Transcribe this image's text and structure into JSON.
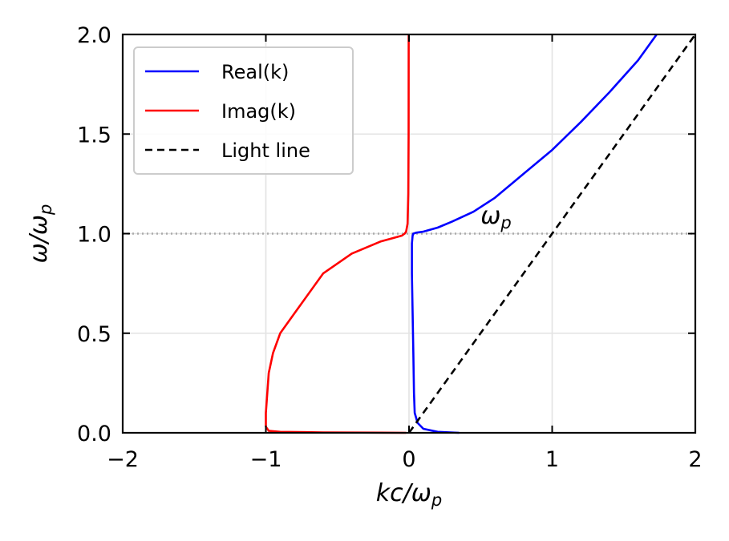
{
  "chart_data": {
    "type": "line",
    "xlabel": "kc/ωp",
    "xlabel_parts": {
      "main": "kc/ω",
      "sub": "p"
    },
    "ylabel": "ω/ωp",
    "ylabel_parts": {
      "main": "ω/ω",
      "sub": "p"
    },
    "xlim": [
      -2,
      2
    ],
    "ylim": [
      0,
      2
    ],
    "x_ticks": [
      -2,
      -1,
      0,
      1,
      2
    ],
    "x_tick_labels": [
      "−2",
      "−1",
      "0",
      "1",
      "2"
    ],
    "y_ticks": [
      0,
      0.5,
      1,
      1.5,
      2
    ],
    "y_tick_labels": [
      "0.0",
      "0.5",
      "1.0",
      "1.5",
      "2.0"
    ],
    "grid": true,
    "legend_position": "top-left",
    "reference_line": {
      "y": 1.0,
      "style": "dotted",
      "color": "#aaaaaa"
    },
    "annotation": {
      "text": "ωp",
      "main": "ω",
      "sub": "p",
      "x": 0.5,
      "y": 1.05
    },
    "series": [
      {
        "name": "Real(k)",
        "color": "#0000ff",
        "style": "solid",
        "x": [
          0.35,
          0.2,
          0.1,
          0.06,
          0.04,
          0.035,
          0.03,
          0.025,
          0.02,
          0.02,
          0.025,
          0.03,
          0.05,
          0.1,
          0.2,
          0.3,
          0.45,
          0.6,
          0.8,
          1.0,
          1.2,
          1.4,
          1.6,
          1.73
        ],
        "y": [
          0.0,
          0.005,
          0.02,
          0.05,
          0.1,
          0.2,
          0.4,
          0.6,
          0.8,
          0.95,
          0.99,
          1.0,
          1.005,
          1.01,
          1.03,
          1.06,
          1.11,
          1.18,
          1.3,
          1.42,
          1.56,
          1.71,
          1.87,
          2.0
        ]
      },
      {
        "name": "Imag(k)",
        "color": "#ff0000",
        "style": "solid",
        "x": [
          -0.02,
          -0.2,
          -0.6,
          -0.9,
          -0.98,
          -1.0,
          -1.0,
          -0.99,
          -0.98,
          -0.95,
          -0.9,
          -0.8,
          -0.6,
          -0.4,
          -0.2,
          -0.1,
          -0.05,
          -0.03,
          -0.02,
          -0.01,
          -0.005,
          -0.003,
          -0.002
        ],
        "y": [
          0.0,
          0.001,
          0.002,
          0.005,
          0.01,
          0.03,
          0.1,
          0.2,
          0.3,
          0.4,
          0.5,
          0.6,
          0.8,
          0.9,
          0.96,
          0.98,
          0.99,
          1.0,
          1.01,
          1.05,
          1.2,
          1.5,
          2.0
        ]
      },
      {
        "name": "Light line",
        "color": "#000000",
        "style": "dashed",
        "x": [
          0,
          2
        ],
        "y": [
          0,
          2
        ]
      }
    ]
  }
}
